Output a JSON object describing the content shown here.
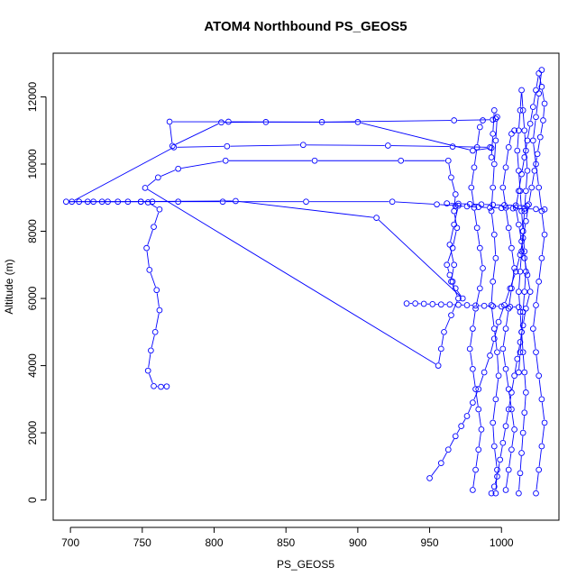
{
  "chart_data": {
    "type": "line",
    "title": "ATOM4 Northbound PS_GEOS5",
    "xlabel": "PS_GEOS5",
    "ylabel": "Altitude (m)",
    "xlim": [
      688,
      1040
    ],
    "ylim": [
      -600,
      13300
    ],
    "xticks": [
      700,
      750,
      800,
      850,
      900,
      950,
      1000
    ],
    "yticks": [
      0,
      2000,
      4000,
      6000,
      8000,
      10000,
      12000
    ],
    "grid": false,
    "legend": "none",
    "color": "#0000FF",
    "marker": "open-circle",
    "series": [
      {
        "x": [
          767,
          763,
          758,
          754,
          756,
          759,
          762,
          760,
          755,
          753,
          758,
          762,
          754,
          749,
          740,
          726,
          716,
          706,
          697,
          712,
          733,
          749,
          757,
          775,
          806,
          864,
          924,
          955,
          970,
          967,
          964,
          967,
          965,
          970,
          965,
          960,
          958,
          956,
          752,
          761,
          775,
          808,
          870,
          930,
          963,
          965,
          968,
          967,
          969,
          966,
          962,
          964,
          966,
          968,
          973,
          913,
          815,
          722,
          701,
          772,
          809,
          862,
          921,
          966,
          992,
          993,
          980,
          900,
          836,
          805,
          771,
          769,
          810,
          875,
          967,
          994,
          996
        ],
        "y": [
          3380,
          3370,
          3390,
          3850,
          4450,
          5000,
          5650,
          6250,
          6850,
          7500,
          8130,
          8650,
          8860,
          8880,
          8880,
          8880,
          8880,
          8880,
          8880,
          8880,
          8880,
          8880,
          8880,
          8880,
          8880,
          8880,
          8880,
          8800,
          8760,
          8200,
          7600,
          7000,
          6500,
          6000,
          5500,
          5000,
          4500,
          4000,
          9290,
          9600,
          9860,
          10100,
          10100,
          10100,
          10100,
          9600,
          9100,
          8600,
          8100,
          7500,
          7000,
          6700,
          6500,
          6300,
          6000,
          8400,
          8900,
          8880,
          8880,
          10500,
          10530,
          10570,
          10550,
          10520,
          10500,
          10480,
          10400,
          11250,
          11250,
          11240,
          10540,
          11260,
          11260,
          11250,
          11300,
          11320,
          11350
        ]
      },
      {
        "x": [
          950,
          958,
          963,
          968,
          972,
          976,
          980,
          984,
          988,
          992,
          995,
          998,
          1002,
          1006,
          1010,
          1013,
          1015,
          1017,
          1019,
          1021,
          1023,
          1025,
          1027,
          1029,
          1030,
          1028,
          1026,
          1024,
          1022,
          1020,
          1018,
          1016,
          1014,
          1012,
          1010,
          1012,
          1014,
          1016,
          1018,
          1020,
          1017,
          1015,
          1013,
          1011,
          1009,
          1007,
          1005,
          1003,
          1001,
          999,
          997,
          995,
          993
        ],
        "y": [
          650,
          1100,
          1500,
          1900,
          2200,
          2500,
          2900,
          3300,
          3800,
          4300,
          4800,
          5300,
          5800,
          6300,
          6800,
          7300,
          7800,
          8300,
          8800,
          9300,
          9800,
          10300,
          10800,
          11300,
          11800,
          12300,
          12700,
          12200,
          11700,
          11200,
          10700,
          10200,
          9700,
          9200,
          8700,
          8200,
          7700,
          7200,
          6700,
          6200,
          5700,
          5200,
          4700,
          4200,
          3700,
          3200,
          2700,
          2200,
          1700,
          1200,
          700,
          400,
          200
        ]
      },
      {
        "x": [
          1012,
          1013,
          1014,
          1015,
          1016,
          1017,
          1016,
          1015,
          1014,
          1013,
          1012,
          1013,
          1014,
          1015,
          1016,
          1017,
          1018,
          1017,
          1016,
          1015,
          1014,
          1013,
          1012,
          1011,
          1012,
          1013,
          1014,
          1015,
          1016,
          1017,
          1016,
          1015,
          1014,
          1013,
          1012
        ],
        "y": [
          200,
          800,
          1400,
          2000,
          2600,
          3200,
          3800,
          4400,
          5000,
          5600,
          6200,
          6800,
          7400,
          8000,
          8600,
          9200,
          9800,
          10400,
          11000,
          11600,
          12200,
          11600,
          11000,
          10400,
          9800,
          9200,
          8600,
          8000,
          7400,
          6800,
          6200,
          5600,
          5000,
          4400,
          3800
        ]
      },
      {
        "x": [
          996,
          997,
          995,
          994,
          996,
          998,
          997,
          995,
          993,
          994,
          996,
          995,
          993,
          994,
          995,
          996,
          997,
          995,
          994,
          993
        ],
        "y": [
          200,
          900,
          1600,
          2300,
          3000,
          3700,
          4400,
          5100,
          5800,
          6500,
          7200,
          7900,
          8600,
          9300,
          10000,
          10700,
          11400,
          11600,
          10900,
          10200
        ]
      },
      {
        "x": [
          980,
          982,
          984,
          986,
          984,
          982,
          980,
          978,
          980,
          982,
          985,
          987,
          985,
          983,
          981,
          979,
          981,
          983,
          985,
          987
        ],
        "y": [
          300,
          900,
          1500,
          2100,
          2700,
          3300,
          3900,
          4500,
          5100,
          5700,
          6300,
          6900,
          7500,
          8100,
          8700,
          9300,
          9900,
          10500,
          11100,
          11300
        ]
      },
      {
        "x": [
          1024,
          1026,
          1028,
          1030,
          1028,
          1026,
          1024,
          1022,
          1024,
          1026,
          1028,
          1030,
          1028,
          1026,
          1024,
          1022,
          1024,
          1026,
          1028
        ],
        "y": [
          200,
          900,
          1600,
          2300,
          3000,
          3700,
          4400,
          5100,
          5800,
          6500,
          7200,
          7900,
          8600,
          9300,
          10000,
          10700,
          11400,
          12100,
          12800
        ]
      },
      {
        "x": [
          1003,
          1005,
          1007,
          1009,
          1007,
          1005,
          1003,
          1001,
          1003,
          1005,
          1007,
          1009,
          1007,
          1005,
          1003,
          1001,
          1003,
          1005,
          1007,
          1009
        ],
        "y": [
          300,
          900,
          1500,
          2100,
          2700,
          3300,
          3900,
          4500,
          5100,
          5700,
          6300,
          6900,
          7500,
          8100,
          8700,
          9300,
          9900,
          10500,
          10900,
          11000
        ]
      },
      {
        "x": [
          934,
          940,
          946,
          952,
          958,
          964,
          970,
          976,
          982,
          988,
          994,
          1000,
          1006,
          1012
        ],
        "y": [
          5850,
          5850,
          5840,
          5830,
          5820,
          5820,
          5810,
          5800,
          5790,
          5780,
          5770,
          5760,
          5750,
          5740
        ]
      },
      {
        "x": [
          962,
          970,
          978,
          986,
          994,
          1002,
          1010,
          1018
        ],
        "y": [
          8830,
          8820,
          8810,
          8800,
          8790,
          8780,
          8770,
          8760
        ]
      },
      {
        "x": [
          968,
          976,
          984,
          992,
          1000,
          1008,
          1016,
          1024,
          1030
        ],
        "y": [
          8750,
          8740,
          8720,
          8700,
          8690,
          8680,
          8670,
          8660,
          8650
        ]
      }
    ]
  }
}
